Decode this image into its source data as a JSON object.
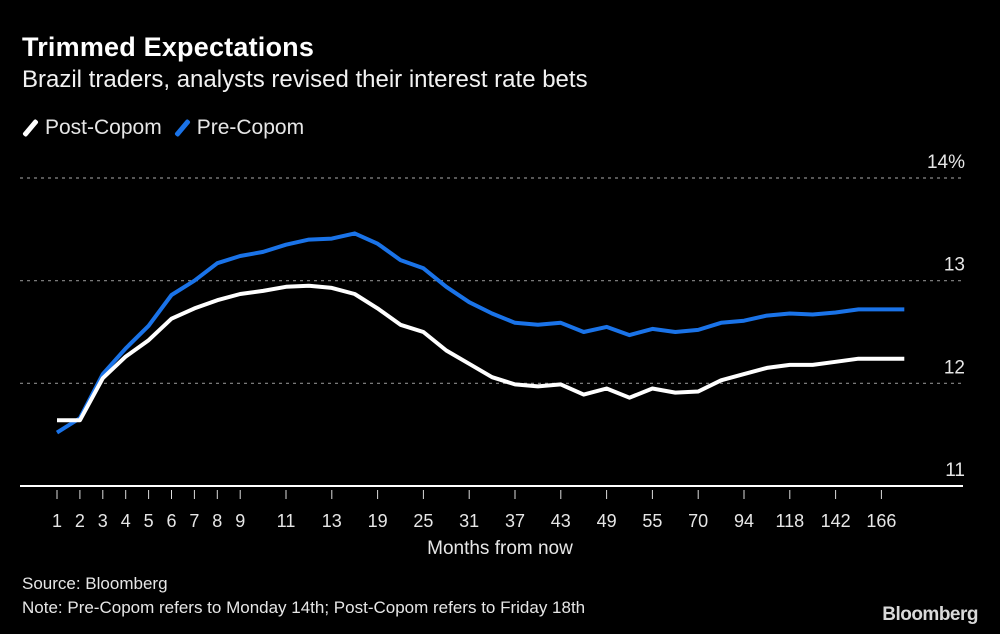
{
  "chart_data": {
    "type": "line",
    "title": "Trimmed Expectations",
    "subtitle": "Brazil traders, analysts revised their interest rate bets",
    "xlabel": "Months from now",
    "ylabel": "",
    "y_unit": "%",
    "ylim": [
      11,
      14
    ],
    "yticks": [
      11,
      12,
      13,
      14
    ],
    "ytick_labels": [
      "11",
      "12",
      "13",
      "14%"
    ],
    "grid": true,
    "legend_position": "top-left",
    "categories": [
      "1",
      "2",
      "3",
      "4",
      "5",
      "6",
      "7",
      "8",
      "9",
      "",
      "11",
      "",
      "13",
      "",
      "19",
      "",
      "25",
      "",
      "31",
      "",
      "37",
      "",
      "43",
      "",
      "49",
      "",
      "55",
      "",
      "70",
      "",
      "94",
      "",
      "118",
      "",
      "142",
      "",
      "166",
      ""
    ],
    "series": [
      {
        "name": "Post-Copom",
        "color": "#ffffff",
        "values": [
          11.64,
          11.64,
          12.05,
          12.26,
          12.42,
          12.63,
          12.73,
          12.81,
          12.87,
          12.9,
          12.94,
          12.95,
          12.93,
          12.87,
          12.73,
          12.57,
          12.5,
          12.32,
          12.19,
          12.06,
          11.99,
          11.97,
          11.99,
          11.89,
          11.95,
          11.86,
          11.95,
          11.91,
          11.92,
          12.03,
          12.09,
          12.15,
          12.18,
          12.18,
          12.21,
          12.24,
          12.24,
          12.24
        ]
      },
      {
        "name": "Pre-Copom",
        "color": "#1a73e8",
        "values": [
          11.52,
          11.66,
          12.09,
          12.34,
          12.56,
          12.86,
          13.0,
          13.17,
          13.24,
          13.28,
          13.35,
          13.4,
          13.41,
          13.46,
          13.36,
          13.2,
          13.12,
          12.94,
          12.79,
          12.68,
          12.59,
          12.57,
          12.59,
          12.5,
          12.55,
          12.47,
          12.53,
          12.5,
          12.52,
          12.59,
          12.61,
          12.66,
          12.68,
          12.67,
          12.69,
          12.72,
          12.72,
          12.72
        ]
      }
    ]
  },
  "footer": {
    "source": "Source: Bloomberg",
    "note": "Note: Pre-Copom refers to Monday 14th; Post-Copom refers to Friday 18th",
    "logo": "Bloomberg"
  }
}
